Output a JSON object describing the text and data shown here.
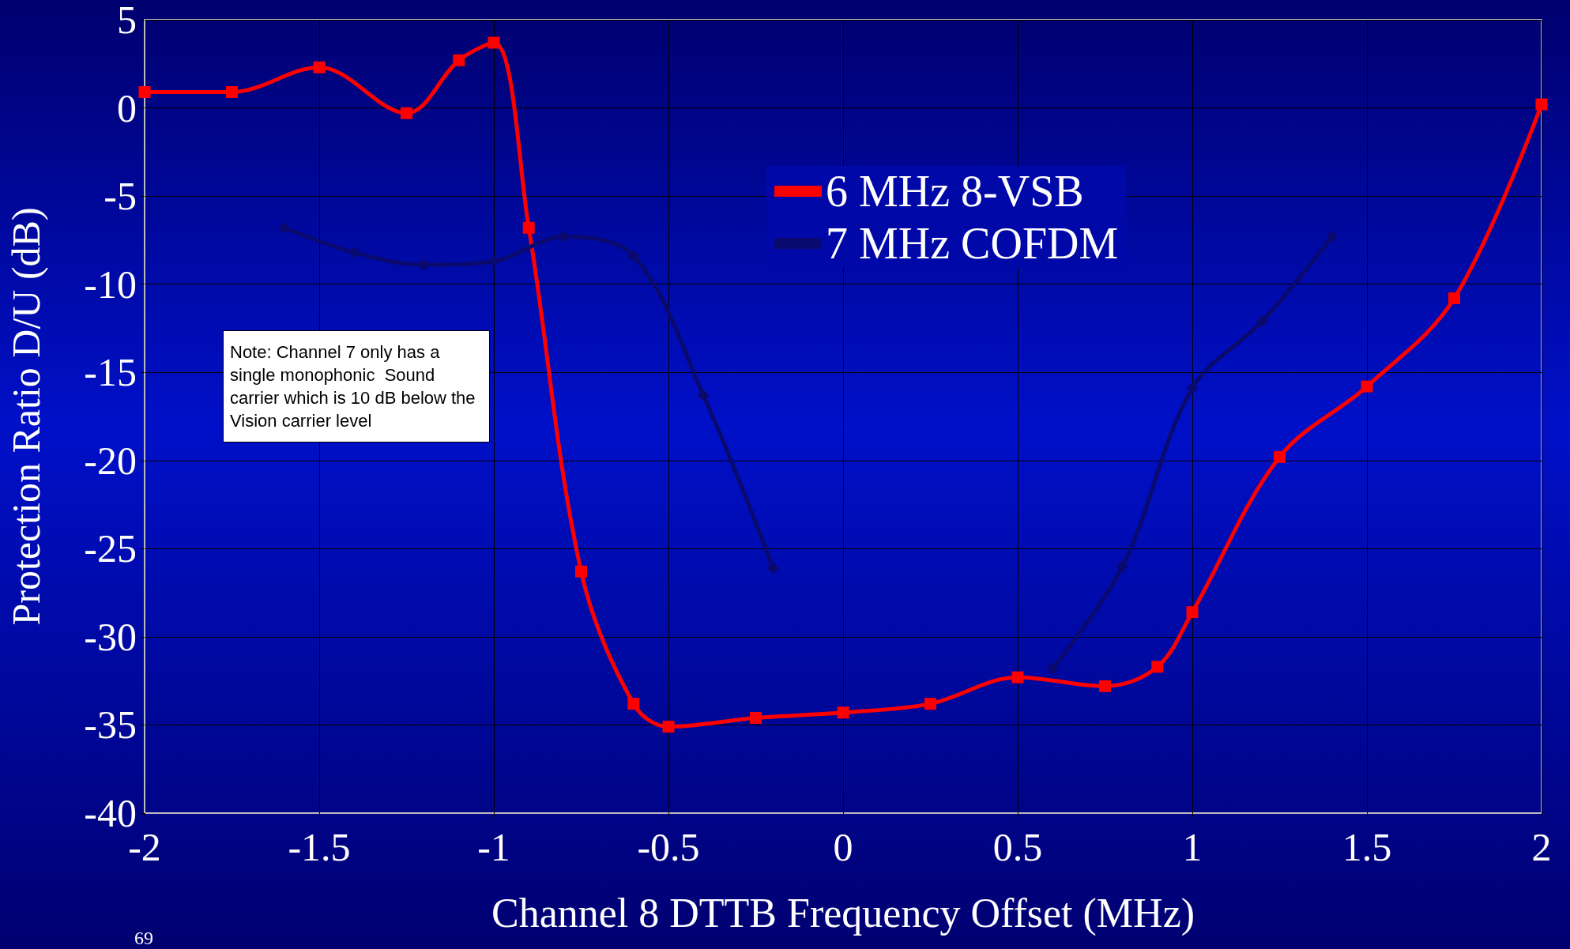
{
  "chart_data": {
    "type": "line",
    "xlabel": "Channel 8 DTTB Frequency Offset (MHz)",
    "ylabel": "Protection Ratio D/U (dB)",
    "annotations": [
      "Note: Channel 7 only has a single monophonic  Sound carrier which is 10 dB below the Vision carrier level",
      "69"
    ],
    "series": [
      {
        "name": "6 MHz 8-VSB",
        "color": "#ff0000",
        "marker": "square",
        "x": [
          -2,
          -1.75,
          -1.5,
          -1.25,
          -1.1,
          -1,
          -0.9,
          -0.75,
          -0.6,
          -0.5,
          -0.25,
          0,
          0.25,
          0.5,
          0.75,
          0.9,
          1,
          1.25,
          1.5,
          1.75,
          2
        ],
        "values": [
          0.9,
          0.9,
          2.3,
          -0.3,
          2.7,
          3.7,
          -6.8,
          -26.3,
          -33.8,
          -35.1,
          -34.6,
          -34.3,
          -33.8,
          -32.3,
          -32.8,
          -31.7,
          -28.6,
          -19.8,
          -15.8,
          -10.8,
          0.2
        ]
      },
      {
        "name": "7 MHz COFDM",
        "color": "#0a0a6e",
        "marker": "diamond",
        "x": [
          -1.6,
          -1.4,
          -1.2,
          -1,
          -0.8,
          -0.6,
          -0.4,
          -0.2,
          0,
          0.2,
          0.4,
          0.6,
          0.8,
          1,
          1.2,
          1.4
        ],
        "values": [
          -6.8,
          -8.2,
          -8.9,
          -8.7,
          -7.3,
          -8.4,
          -16.3,
          -26.1,
          null,
          null,
          null,
          -31.8,
          -26,
          -15.9,
          -12.1,
          -7.3
        ]
      }
    ],
    "xlim": [
      -2,
      2
    ],
    "xticks": [
      -2,
      -1.5,
      -1,
      -0.5,
      0,
      0.5,
      1,
      1.5,
      2
    ],
    "ylim": [
      -40,
      5
    ],
    "yticks": [
      -40,
      -35,
      -30,
      -25,
      -20,
      -15,
      -10,
      -5,
      0,
      5
    ],
    "grid": true,
    "legend": "top",
    "line_style": "solid"
  }
}
